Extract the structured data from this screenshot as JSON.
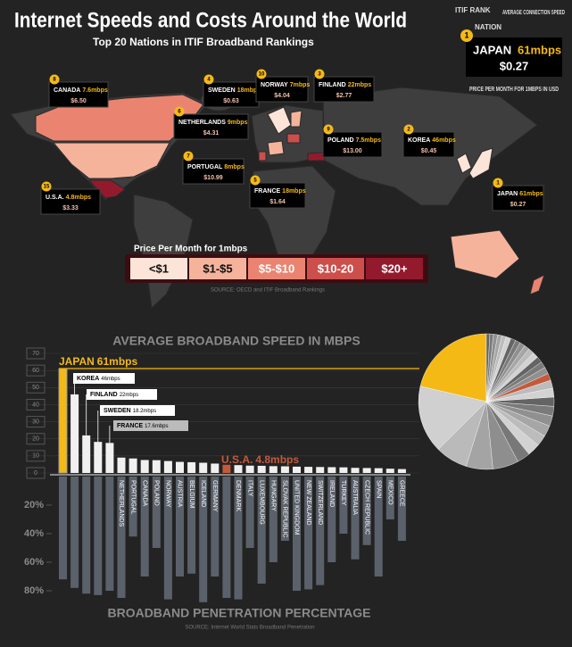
{
  "header": {
    "title": "Internet Speeds and Costs Around the World",
    "subtitle": "Top 20 Nations in ITIF Broadband Rankings"
  },
  "key": {
    "rank_label": "ITIF RANK",
    "speed_label": "AVERAGE CONNECTION SPEED",
    "nation_label": "NATION",
    "rank": 1,
    "nation": "JAPAN",
    "speed": "61mbps",
    "price": "$0.27",
    "price_label": "PRICE PER MONTH FOR 1MBPS IN USD"
  },
  "map": {
    "callouts": [
      {
        "rank": 8,
        "nation": "CANADA",
        "speed": "7.6mbps",
        "price": "$6.50"
      },
      {
        "rank": 4,
        "nation": "SWEDEN",
        "speed": "18mbps",
        "price": "$0.63"
      },
      {
        "rank": 10,
        "nation": "NORWAY",
        "speed": "7mbps",
        "price": "$4.04"
      },
      {
        "rank": 3,
        "nation": "FINLAND",
        "speed": "22mbps",
        "price": "$2.77"
      },
      {
        "rank": 6,
        "nation": "NETHERLANDS",
        "speed": "9mbps",
        "price": "$4.31"
      },
      {
        "rank": 9,
        "nation": "POLAND",
        "speed": "7.5mbps",
        "price": "$13.00"
      },
      {
        "rank": 2,
        "nation": "KOREA",
        "speed": "46mbps",
        "price": "$0.45"
      },
      {
        "rank": 7,
        "nation": "PORTUGAL",
        "speed": "8mbps",
        "price": "$10.99"
      },
      {
        "rank": 5,
        "nation": "FRANCE",
        "speed": "18mbps",
        "price": "$1.64"
      },
      {
        "rank": 15,
        "nation": "U.S.A.",
        "speed": "4.8mbps",
        "price": "$3.33"
      },
      {
        "rank": 1,
        "nation": "JAPAN",
        "speed": "61mbps",
        "price": "$0.27"
      }
    ],
    "price_legend": {
      "title": "Price Per Month for 1mbps",
      "bins": [
        {
          "label": "<$1",
          "color": "#fde4d8"
        },
        {
          "label": "$1-$5",
          "color": "#f6b39c"
        },
        {
          "label": "$5-$10",
          "color": "#ea8470"
        },
        {
          "label": "$10-20",
          "color": "#cc4f4b"
        },
        {
          "label": "$20+",
          "color": "#931a2c"
        }
      ]
    },
    "source": "SOURCE: OECD and ITIF Broadband Rankings"
  },
  "chart_data": [
    {
      "type": "bar",
      "title": "AVERAGE BROADBAND SPEED IN MBPS",
      "categories": [
        "JAPAN",
        "KOREA",
        "FINLAND",
        "SWEDEN",
        "FRANCE",
        null,
        null,
        null,
        null,
        null,
        null,
        null,
        null,
        null,
        "U.S.A.",
        null,
        null,
        null,
        null,
        null,
        null,
        null,
        null,
        null,
        null,
        null,
        null,
        null,
        null,
        null
      ],
      "values": [
        61,
        46,
        22,
        18.2,
        17.6,
        9,
        8.5,
        7.6,
        7.5,
        7,
        6.5,
        6.3,
        6,
        5.5,
        4.8,
        4.6,
        4.3,
        4.2,
        4,
        3.9,
        3.7,
        3.6,
        3.5,
        3.4,
        3.3,
        3,
        2.9,
        2.8,
        2.5,
        2.3
      ],
      "value_labels": [
        "61mbps",
        "46mbps",
        "22mbps",
        "18.2mbps",
        "17.6mbps",
        null,
        null,
        null,
        null,
        null,
        null,
        null,
        null,
        null,
        "4.8mbps",
        null,
        null,
        null,
        null,
        null,
        null,
        null,
        null,
        null,
        null,
        null,
        null,
        null,
        null,
        null
      ],
      "colors": [
        "#f5b916",
        "#f0f0f0",
        "#f0f0f0",
        "#f0f0f0",
        "#f0f0f0",
        "#f0f0f0",
        "#f0f0f0",
        "#f0f0f0",
        "#f0f0f0",
        "#f0f0f0",
        "#f0f0f0",
        "#f0f0f0",
        "#f0f0f0",
        "#f0f0f0",
        "#c45a3b",
        "#f0f0f0",
        "#f0f0f0",
        "#f0f0f0",
        "#f0f0f0",
        "#f0f0f0",
        "#f0f0f0",
        "#f0f0f0",
        "#f0f0f0",
        "#f0f0f0",
        "#f0f0f0",
        "#f0f0f0",
        "#f0f0f0",
        "#f0f0f0",
        "#f0f0f0",
        "#f0f0f0"
      ],
      "ylim": [
        0,
        70
      ],
      "yticks": [
        0,
        10,
        20,
        30,
        40,
        50,
        60,
        70
      ],
      "grid": true
    },
    {
      "type": "bar",
      "title": "BROADBAND PENETRATION PERCENTAGE",
      "source": "SOURCE: Internet World Stats Broadband Penetration",
      "categories": [
        null,
        null,
        null,
        null,
        null,
        "NETHERLANDS",
        "PORTUGAL",
        "CANADA",
        "POLAND",
        "NORWAY",
        "AUSTRIA",
        "BELGIUM",
        "ICELAND",
        "GERMANY",
        null,
        "DENMARK",
        "ITALY",
        "LUXEMBOURG",
        "HUNGARY",
        "SLOVAK REPUBLIC",
        "UNITED KINGDOM",
        "NEW ZEALAND",
        "SWITZERLAND",
        "IRELAND",
        "TURKEY",
        "AUSTRALIA",
        "CZECH REPUBLIC",
        "SPAIN",
        "MEXICO",
        "GREECE"
      ],
      "values": [
        72,
        78,
        82,
        83,
        80,
        85,
        42,
        70,
        50,
        86,
        70,
        68,
        88,
        70,
        85,
        86,
        50,
        75,
        60,
        45,
        80,
        79,
        76,
        60,
        40,
        58,
        48,
        70,
        30,
        45
      ],
      "color": "#5b616b",
      "ylim": [
        0,
        90
      ],
      "yticks": [
        {
          "value": 20,
          "label": "20%"
        },
        {
          "value": 40,
          "label": "40%"
        },
        {
          "value": 60,
          "label": "60%"
        },
        {
          "value": 80,
          "label": "80%"
        }
      ]
    }
  ]
}
